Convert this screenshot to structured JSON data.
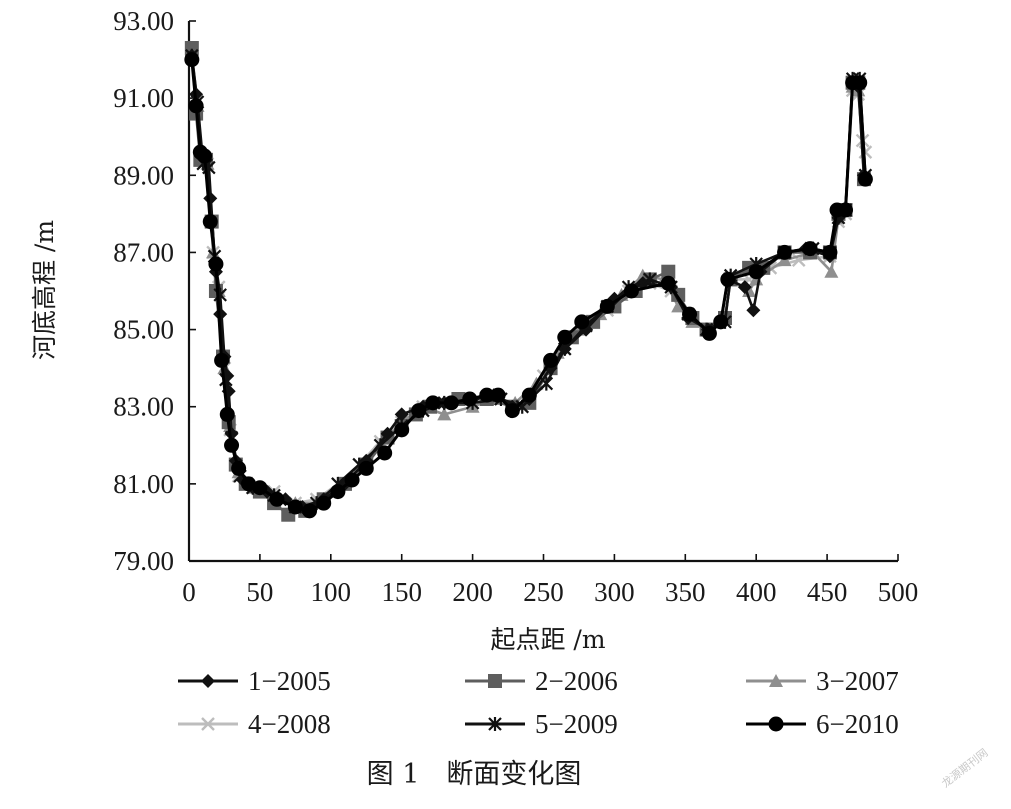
{
  "chart_data": {
    "type": "line",
    "title": "",
    "xlabel": "起点距 /m",
    "ylabel": "河底高程 /m",
    "xlim": [
      0,
      500
    ],
    "ylim": [
      79,
      93
    ],
    "x_ticks": [
      "0",
      "50",
      "100",
      "150",
      "200",
      "250",
      "300",
      "350",
      "400",
      "450",
      "500"
    ],
    "y_ticks": [
      "79.00",
      "81.00",
      "83.00",
      "85.00",
      "87.00",
      "89.00",
      "91.00",
      "93.00"
    ],
    "grid": false,
    "caption": "图 1　断面变化图",
    "watermark": "龙源期刊网",
    "series": [
      {
        "name": "1-2005",
        "marker": "diamond",
        "color": "#111111",
        "points": [
          [
            2,
            92.1
          ],
          [
            5,
            91.1
          ],
          [
            8,
            89.6
          ],
          [
            12,
            89.4
          ],
          [
            15,
            88.4
          ],
          [
            19,
            86.5
          ],
          [
            22,
            85.4
          ],
          [
            25,
            84.3
          ],
          [
            27,
            83.8
          ],
          [
            28,
            83.4
          ],
          [
            30,
            82.3
          ],
          [
            33,
            81.6
          ],
          [
            38,
            81.1
          ],
          [
            45,
            80.9
          ],
          [
            55,
            80.8
          ],
          [
            68,
            80.6
          ],
          [
            80,
            80.4
          ],
          [
            95,
            80.6
          ],
          [
            110,
            81.0
          ],
          [
            125,
            81.6
          ],
          [
            140,
            82.3
          ],
          [
            150,
            82.8
          ],
          [
            165,
            83.0
          ],
          [
            180,
            83.1
          ],
          [
            200,
            83.2
          ],
          [
            215,
            83.3
          ],
          [
            228,
            83.0
          ],
          [
            240,
            83.2
          ],
          [
            255,
            84.0
          ],
          [
            265,
            84.5
          ],
          [
            280,
            85.0
          ],
          [
            300,
            85.8
          ],
          [
            320,
            86.2
          ],
          [
            340,
            86.1
          ],
          [
            352,
            85.3
          ],
          [
            366,
            85.0
          ],
          [
            375,
            85.2
          ],
          [
            380,
            86.3
          ],
          [
            392,
            86.1
          ],
          [
            398,
            85.5
          ],
          [
            403,
            86.5
          ],
          [
            420,
            87.0
          ],
          [
            435,
            87.1
          ],
          [
            452,
            86.9
          ],
          [
            458,
            87.9
          ],
          [
            463,
            88.1
          ],
          [
            468,
            91.4
          ],
          [
            472,
            91.3
          ],
          [
            476,
            89.0
          ]
        ]
      },
      {
        "name": "2-2006",
        "marker": "square",
        "color": "#5e5e5e",
        "points": [
          [
            2,
            92.3
          ],
          [
            5,
            90.6
          ],
          [
            8,
            89.4
          ],
          [
            12,
            89.4
          ],
          [
            16,
            87.8
          ],
          [
            19,
            86.0
          ],
          [
            24,
            84.3
          ],
          [
            28,
            82.6
          ],
          [
            33,
            81.5
          ],
          [
            40,
            81.0
          ],
          [
            50,
            80.8
          ],
          [
            60,
            80.5
          ],
          [
            70,
            80.2
          ],
          [
            82,
            80.3
          ],
          [
            95,
            80.6
          ],
          [
            110,
            81.0
          ],
          [
            125,
            81.5
          ],
          [
            140,
            82.2
          ],
          [
            150,
            82.5
          ],
          [
            160,
            82.8
          ],
          [
            170,
            83.0
          ],
          [
            190,
            83.2
          ],
          [
            210,
            83.2
          ],
          [
            228,
            83.0
          ],
          [
            240,
            83.1
          ],
          [
            255,
            84.0
          ],
          [
            270,
            84.8
          ],
          [
            285,
            85.2
          ],
          [
            300,
            85.6
          ],
          [
            315,
            86.0
          ],
          [
            325,
            86.3
          ],
          [
            338,
            86.5
          ],
          [
            345,
            85.9
          ],
          [
            355,
            85.3
          ],
          [
            365,
            85.0
          ],
          [
            378,
            85.3
          ],
          [
            382,
            86.3
          ],
          [
            395,
            86.6
          ],
          [
            405,
            86.6
          ],
          [
            420,
            87.0
          ],
          [
            438,
            87.0
          ],
          [
            452,
            87.0
          ],
          [
            458,
            88.0
          ],
          [
            463,
            88.1
          ],
          [
            468,
            91.4
          ],
          [
            472,
            91.4
          ],
          [
            476,
            88.9
          ]
        ]
      },
      {
        "name": "3-2007",
        "marker": "triangle",
        "color": "#8f8f8f",
        "points": [
          [
            2,
            92.2
          ],
          [
            6,
            90.8
          ],
          [
            9,
            89.5
          ],
          [
            13,
            89.3
          ],
          [
            17,
            87.0
          ],
          [
            21,
            86.0
          ],
          [
            25,
            84.0
          ],
          [
            29,
            82.5
          ],
          [
            35,
            81.3
          ],
          [
            45,
            80.9
          ],
          [
            60,
            80.7
          ],
          [
            75,
            80.5
          ],
          [
            90,
            80.5
          ],
          [
            105,
            80.9
          ],
          [
            120,
            81.4
          ],
          [
            135,
            82.0
          ],
          [
            150,
            82.6
          ],
          [
            165,
            83.0
          ],
          [
            180,
            82.8
          ],
          [
            200,
            83.0
          ],
          [
            215,
            83.2
          ],
          [
            230,
            83.1
          ],
          [
            245,
            83.6
          ],
          [
            260,
            84.4
          ],
          [
            275,
            85.0
          ],
          [
            290,
            85.4
          ],
          [
            305,
            85.9
          ],
          [
            320,
            86.4
          ],
          [
            335,
            86.3
          ],
          [
            345,
            85.6
          ],
          [
            355,
            85.2
          ],
          [
            365,
            85.0
          ],
          [
            378,
            85.3
          ],
          [
            382,
            86.3
          ],
          [
            395,
            86.0
          ],
          [
            400,
            86.3
          ],
          [
            420,
            86.8
          ],
          [
            440,
            87.0
          ],
          [
            453,
            86.5
          ],
          [
            458,
            87.9
          ],
          [
            463,
            88.2
          ],
          [
            468,
            91.3
          ],
          [
            472,
            91.2
          ],
          [
            477,
            89.0
          ]
        ]
      },
      {
        "name": "4-2008",
        "marker": "x",
        "color": "#bdbdbd",
        "points": [
          [
            2,
            92.1
          ],
          [
            6,
            90.9
          ],
          [
            9,
            89.5
          ],
          [
            13,
            89.3
          ],
          [
            17,
            87.0
          ],
          [
            21,
            86.1
          ],
          [
            25,
            84.0
          ],
          [
            29,
            82.4
          ],
          [
            35,
            81.2
          ],
          [
            45,
            80.9
          ],
          [
            60,
            80.8
          ],
          [
            75,
            80.5
          ],
          [
            90,
            80.6
          ],
          [
            105,
            81.0
          ],
          [
            120,
            81.5
          ],
          [
            135,
            82.1
          ],
          [
            150,
            82.6
          ],
          [
            165,
            83.0
          ],
          [
            180,
            83.1
          ],
          [
            200,
            83.1
          ],
          [
            220,
            83.2
          ],
          [
            235,
            83.0
          ],
          [
            250,
            83.8
          ],
          [
            265,
            84.5
          ],
          [
            280,
            85.1
          ],
          [
            295,
            85.5
          ],
          [
            310,
            86.0
          ],
          [
            325,
            86.2
          ],
          [
            340,
            86.0
          ],
          [
            352,
            85.4
          ],
          [
            365,
            85.0
          ],
          [
            378,
            85.3
          ],
          [
            382,
            86.3
          ],
          [
            395,
            86.3
          ],
          [
            410,
            86.6
          ],
          [
            430,
            86.8
          ],
          [
            452,
            86.9
          ],
          [
            458,
            87.8
          ],
          [
            463,
            88.0
          ],
          [
            468,
            91.2
          ],
          [
            472,
            91.1
          ],
          [
            475,
            89.9
          ],
          [
            477,
            89.6
          ]
        ]
      },
      {
        "name": "5-2009",
        "marker": "star",
        "color": "#111111",
        "points": [
          [
            2,
            92.1
          ],
          [
            6,
            90.9
          ],
          [
            10,
            89.3
          ],
          [
            14,
            89.2
          ],
          [
            18,
            86.9
          ],
          [
            22,
            85.9
          ],
          [
            26,
            83.7
          ],
          [
            30,
            82.2
          ],
          [
            36,
            81.2
          ],
          [
            45,
            80.9
          ],
          [
            60,
            80.7
          ],
          [
            75,
            80.4
          ],
          [
            90,
            80.5
          ],
          [
            105,
            81.0
          ],
          [
            120,
            81.5
          ],
          [
            135,
            82.0
          ],
          [
            150,
            82.5
          ],
          [
            165,
            82.9
          ],
          [
            180,
            83.1
          ],
          [
            200,
            83.1
          ],
          [
            220,
            83.2
          ],
          [
            235,
            83.0
          ],
          [
            252,
            83.6
          ],
          [
            265,
            84.5
          ],
          [
            280,
            85.1
          ],
          [
            295,
            85.6
          ],
          [
            310,
            86.1
          ],
          [
            325,
            86.3
          ],
          [
            340,
            86.1
          ],
          [
            352,
            85.4
          ],
          [
            365,
            85.0
          ],
          [
            378,
            85.2
          ],
          [
            382,
            86.4
          ],
          [
            400,
            86.7
          ],
          [
            420,
            87.0
          ],
          [
            440,
            87.1
          ],
          [
            452,
            87.0
          ],
          [
            458,
            87.9
          ],
          [
            463,
            88.1
          ],
          [
            468,
            91.5
          ],
          [
            473,
            91.5
          ],
          [
            477,
            89.0
          ]
        ]
      },
      {
        "name": "6-2010",
        "marker": "circle",
        "color": "#000000",
        "points": [
          [
            2,
            92.0
          ],
          [
            5,
            90.8
          ],
          [
            8,
            89.6
          ],
          [
            11,
            89.5
          ],
          [
            15,
            87.8
          ],
          [
            19,
            86.7
          ],
          [
            23,
            84.2
          ],
          [
            27,
            82.8
          ],
          [
            30,
            82.0
          ],
          [
            35,
            81.4
          ],
          [
            42,
            81.0
          ],
          [
            50,
            80.9
          ],
          [
            62,
            80.6
          ],
          [
            75,
            80.4
          ],
          [
            85,
            80.3
          ],
          [
            95,
            80.5
          ],
          [
            105,
            80.8
          ],
          [
            115,
            81.1
          ],
          [
            125,
            81.4
          ],
          [
            138,
            81.8
          ],
          [
            150,
            82.4
          ],
          [
            162,
            82.9
          ],
          [
            172,
            83.1
          ],
          [
            185,
            83.1
          ],
          [
            198,
            83.2
          ],
          [
            210,
            83.3
          ],
          [
            218,
            83.3
          ],
          [
            228,
            82.9
          ],
          [
            240,
            83.3
          ],
          [
            255,
            84.2
          ],
          [
            265,
            84.8
          ],
          [
            277,
            85.2
          ],
          [
            295,
            85.6
          ],
          [
            312,
            86.0
          ],
          [
            338,
            86.2
          ],
          [
            353,
            85.4
          ],
          [
            367,
            84.9
          ],
          [
            375,
            85.2
          ],
          [
            380,
            86.3
          ],
          [
            400,
            86.5
          ],
          [
            420,
            87.0
          ],
          [
            438,
            87.1
          ],
          [
            452,
            87.0
          ],
          [
            457,
            88.1
          ],
          [
            463,
            88.1
          ],
          [
            468,
            91.4
          ],
          [
            473,
            91.4
          ],
          [
            477,
            88.9
          ]
        ]
      }
    ]
  }
}
